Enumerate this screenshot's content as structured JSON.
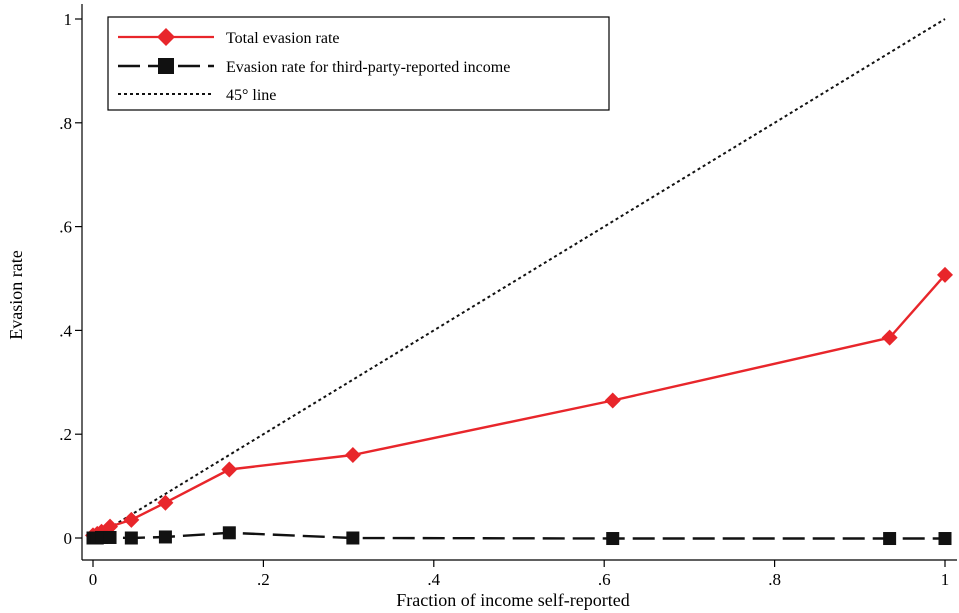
{
  "chart_data": {
    "type": "line",
    "title": "",
    "xlabel": "Fraction of income self-reported",
    "ylabel": "Evasion rate",
    "xlim": [
      0,
      1
    ],
    "ylim": [
      0,
      1
    ],
    "x_ticks": [
      0,
      0.2,
      0.4,
      0.6,
      0.8,
      1
    ],
    "x_tick_labels": [
      "0",
      ".2",
      ".4",
      ".6",
      ".8",
      "1"
    ],
    "y_ticks": [
      0,
      0.2,
      0.4,
      0.6,
      0.8,
      1
    ],
    "y_tick_labels": [
      "0",
      ".2",
      ".4",
      ".6",
      ".8",
      "1"
    ],
    "grid": false,
    "legend_position": "top-left",
    "series": [
      {
        "name": "Total evasion rate",
        "color": "#e8262b",
        "marker": "diamond",
        "line_style": "solid",
        "x": [
          0.0,
          0.005,
          0.01,
          0.02,
          0.045,
          0.085,
          0.16,
          0.305,
          0.61,
          0.935,
          1.0
        ],
        "y": [
          0.005,
          0.008,
          0.012,
          0.022,
          0.035,
          0.068,
          0.132,
          0.16,
          0.265,
          0.386,
          0.507
        ]
      },
      {
        "name": "Evasion rate for third-party-reported income",
        "color": "#111111",
        "marker": "square",
        "line_style": "long-dash",
        "x": [
          0.0,
          0.005,
          0.01,
          0.02,
          0.045,
          0.085,
          0.16,
          0.305,
          0.61,
          0.935,
          1.0
        ],
        "y": [
          0.0,
          0.0,
          0.001,
          0.001,
          0.0,
          0.002,
          0.01,
          0.0,
          -0.001,
          -0.001,
          -0.001
        ]
      },
      {
        "name": "45° line",
        "color": "#111111",
        "marker": "none",
        "line_style": "dotted",
        "x": [
          0,
          1
        ],
        "y": [
          0,
          1
        ]
      }
    ]
  }
}
